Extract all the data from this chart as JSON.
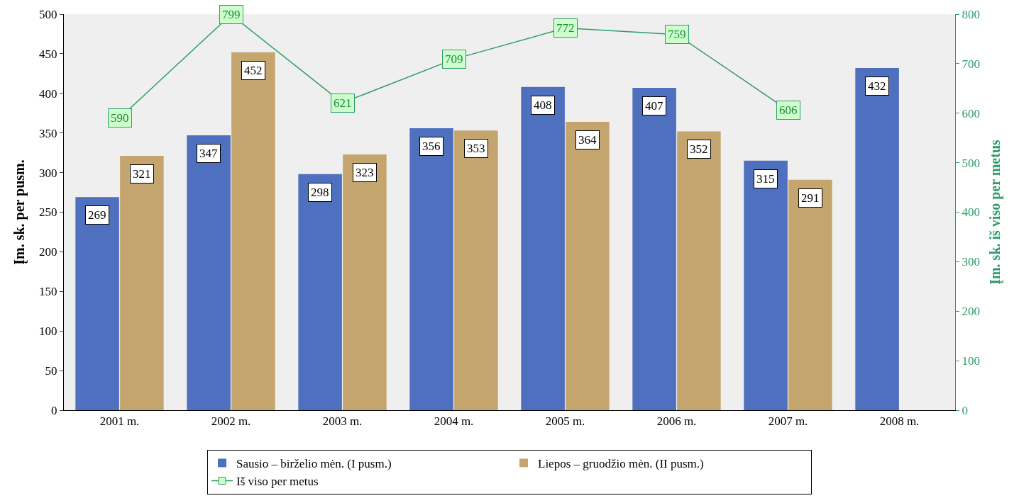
{
  "chart_data": {
    "type": "bar",
    "ylabel": "Įm. sk. per pusm.",
    "y2label": "Įm. sk. iš viso per metus",
    "categories": [
      "2001 m.",
      "2002 m.",
      "2003 m.",
      "2004 m.",
      "2005 m.",
      "2006 m.",
      "2007 m.",
      "2008 m."
    ],
    "series": [
      {
        "name": "Sausio – birželio mėn. (I pusm.)",
        "color": "#4f6fbf",
        "values": [
          269,
          347,
          298,
          356,
          408,
          407,
          315,
          432
        ]
      },
      {
        "name": "Liepos – gruodžio mėn. (II pusm.)",
        "color": "#c4a56e",
        "values": [
          321,
          452,
          323,
          353,
          364,
          352,
          291,
          null
        ]
      },
      {
        "name": "Iš viso per metus",
        "type": "line",
        "axis": "y2",
        "color": "#2e9c6a",
        "marker": "square",
        "values": [
          590,
          799,
          621,
          709,
          772,
          759,
          606,
          null
        ]
      }
    ],
    "ylim": [
      0,
      500
    ],
    "yticks": [
      0,
      50,
      100,
      150,
      200,
      250,
      300,
      350,
      400,
      450,
      500
    ],
    "y2lim": [
      0,
      800
    ],
    "y2ticks": [
      0,
      100,
      200,
      300,
      400,
      500,
      600,
      700,
      800
    ],
    "data_labels": true,
    "grid": false,
    "legend": "bottom"
  }
}
